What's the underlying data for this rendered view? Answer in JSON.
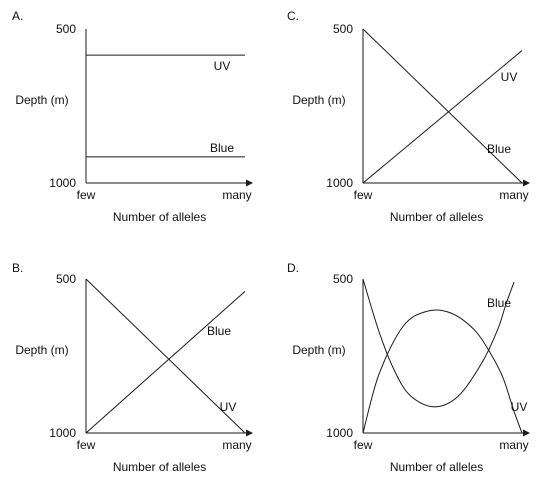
{
  "colors": {
    "line": "#1a1a1a",
    "axis": "#1a1a1a"
  },
  "chart_data": [
    {
      "panel": "A.",
      "type": "line",
      "xlabel": "Number of alleles",
      "ylabel": "Depth (m)",
      "xticks": [
        "few",
        "many"
      ],
      "yticks": [
        "500",
        "1000"
      ],
      "xlim": [
        0,
        1
      ],
      "ylim": [
        500,
        1000
      ],
      "series": [
        {
          "name": "UV",
          "x": [
            0,
            1
          ],
          "y": [
            585,
            585
          ]
        },
        {
          "name": "Blue",
          "x": [
            0,
            1
          ],
          "y": [
            915,
            915
          ]
        }
      ]
    },
    {
      "panel": "C.",
      "type": "line",
      "xlabel": "Number of alleles",
      "ylabel": "Depth (m)",
      "xticks": [
        "few",
        "many"
      ],
      "yticks": [
        "500",
        "1000"
      ],
      "xlim": [
        0,
        1
      ],
      "ylim": [
        500,
        1000
      ],
      "series": [
        {
          "name": "UV",
          "x": [
            0,
            1
          ],
          "y": [
            1000,
            570
          ]
        },
        {
          "name": "Blue",
          "x": [
            0,
            1
          ],
          "y": [
            500,
            1000
          ]
        }
      ]
    },
    {
      "panel": "B.",
      "type": "line",
      "xlabel": "Number of alleles",
      "ylabel": "Depth (m)",
      "xticks": [
        "few",
        "many"
      ],
      "yticks": [
        "500",
        "1000"
      ],
      "xlim": [
        0,
        1
      ],
      "ylim": [
        500,
        1000
      ],
      "series": [
        {
          "name": "Blue",
          "x": [
            0,
            1
          ],
          "y": [
            1000,
            540
          ]
        },
        {
          "name": "UV",
          "x": [
            0,
            1
          ],
          "y": [
            500,
            1000
          ]
        }
      ]
    },
    {
      "panel": "D.",
      "type": "line",
      "xlabel": "Number of alleles",
      "ylabel": "Depth (m)",
      "xticks": [
        "few",
        "many"
      ],
      "yticks": [
        "500",
        "1000"
      ],
      "xlim": [
        0,
        1
      ],
      "ylim": [
        500,
        1000
      ],
      "series": [
        {
          "name": "Blue",
          "x": [
            0,
            0.1,
            0.25,
            0.4,
            0.55,
            0.7,
            0.8,
            0.88,
            0.95,
            1.0
          ],
          "y": [
            1000,
            810,
            655,
            605,
            610,
            665,
            740,
            820,
            930,
            1000
          ]
        },
        {
          "name": "UV",
          "x": [
            0,
            0.1,
            0.2,
            0.3,
            0.45,
            0.6,
            0.75,
            0.85,
            0.9,
            0.95
          ],
          "y": [
            500,
            670,
            800,
            880,
            915,
            880,
            770,
            660,
            580,
            510
          ]
        }
      ]
    }
  ]
}
